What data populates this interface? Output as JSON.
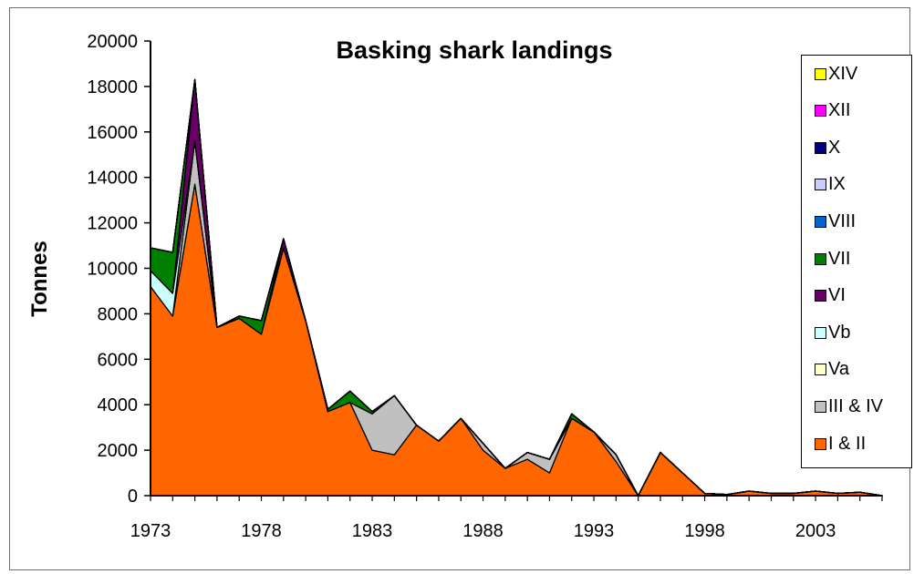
{
  "chart_data": {
    "type": "area",
    "stacked": true,
    "title": "Basking shark landings",
    "xlabel": "",
    "ylabel": "Tonnes",
    "xlim": [
      1973,
      2006
    ],
    "ylim": [
      0,
      20000
    ],
    "y_ticks": [
      0,
      2000,
      4000,
      6000,
      8000,
      10000,
      12000,
      14000,
      16000,
      18000,
      20000
    ],
    "x_tick_labels": [
      "1973",
      "1978",
      "1983",
      "1988",
      "1993",
      "1998",
      "2003"
    ],
    "x_tick_values": [
      1973,
      1978,
      1983,
      1988,
      1993,
      1998,
      2003
    ],
    "grid": false,
    "legend_position": "right",
    "x": [
      1973,
      1974,
      1975,
      1976,
      1977,
      1978,
      1979,
      1980,
      1981,
      1982,
      1983,
      1984,
      1985,
      1986,
      1987,
      1988,
      1989,
      1990,
      1991,
      1992,
      1993,
      1994,
      1995,
      1996,
      1997,
      1998,
      1999,
      2000,
      2001,
      2002,
      2003,
      2004,
      2005,
      2006
    ],
    "series": [
      {
        "name": "I & II",
        "color": "#ff6600",
        "values": [
          9200,
          7900,
          13700,
          7400,
          7800,
          7100,
          10900,
          7700,
          3700,
          4100,
          2000,
          1800,
          3100,
          2400,
          3400,
          2000,
          1200,
          1600,
          1000,
          3400,
          2800,
          1500,
          0,
          1900,
          1000,
          100,
          50,
          200,
          100,
          100,
          200,
          100,
          150,
          0
        ]
      },
      {
        "name": "III & IV",
        "color": "#c0c0c0",
        "values": [
          0,
          0,
          1900,
          0,
          0,
          0,
          0,
          0,
          0,
          0,
          1600,
          2600,
          0,
          0,
          0,
          300,
          0,
          300,
          600,
          0,
          0,
          300,
          0,
          0,
          0,
          0,
          0,
          0,
          0,
          0,
          0,
          0,
          0,
          0
        ]
      },
      {
        "name": "Va",
        "color": "#ffffcc",
        "values": [
          0,
          0,
          0,
          0,
          0,
          0,
          0,
          0,
          0,
          0,
          0,
          0,
          0,
          0,
          0,
          0,
          0,
          0,
          0,
          0,
          0,
          0,
          0,
          0,
          0,
          0,
          0,
          0,
          0,
          0,
          0,
          0,
          0,
          0
        ]
      },
      {
        "name": "Vb",
        "color": "#ccffff",
        "values": [
          700,
          1000,
          0,
          0,
          0,
          0,
          0,
          0,
          0,
          0,
          0,
          0,
          0,
          0,
          0,
          0,
          0,
          0,
          0,
          0,
          0,
          0,
          0,
          0,
          0,
          0,
          0,
          0,
          0,
          0,
          0,
          0,
          0,
          0
        ]
      },
      {
        "name": "VI",
        "color": "#660066",
        "values": [
          0,
          0,
          2700,
          0,
          0,
          0,
          400,
          0,
          0,
          0,
          0,
          0,
          0,
          0,
          0,
          0,
          0,
          0,
          0,
          0,
          0,
          0,
          0,
          0,
          0,
          0,
          0,
          0,
          0,
          0,
          0,
          0,
          0,
          0
        ]
      },
      {
        "name": "VII",
        "color": "#008000",
        "values": [
          1000,
          1800,
          0,
          0,
          100,
          600,
          0,
          0,
          100,
          500,
          100,
          0,
          0,
          0,
          0,
          0,
          0,
          0,
          0,
          200,
          0,
          0,
          0,
          0,
          0,
          0,
          0,
          0,
          0,
          0,
          0,
          0,
          0,
          0
        ]
      },
      {
        "name": "VIII",
        "color": "#0066cc",
        "values": [
          0,
          0,
          0,
          0,
          0,
          0,
          0,
          0,
          0,
          0,
          0,
          0,
          0,
          0,
          0,
          0,
          0,
          0,
          0,
          0,
          0,
          0,
          0,
          0,
          0,
          0,
          0,
          0,
          0,
          0,
          0,
          0,
          0,
          0
        ]
      },
      {
        "name": "IX",
        "color": "#ccccff",
        "values": [
          0,
          0,
          0,
          0,
          0,
          0,
          0,
          0,
          0,
          0,
          0,
          0,
          0,
          0,
          0,
          0,
          0,
          0,
          0,
          0,
          0,
          0,
          0,
          0,
          0,
          0,
          0,
          0,
          0,
          0,
          0,
          0,
          0,
          0
        ]
      },
      {
        "name": "X",
        "color": "#000080",
        "values": [
          0,
          0,
          0,
          0,
          0,
          0,
          0,
          0,
          0,
          0,
          0,
          0,
          0,
          0,
          0,
          0,
          0,
          0,
          0,
          0,
          0,
          0,
          0,
          0,
          0,
          0,
          0,
          0,
          0,
          0,
          0,
          0,
          0,
          0
        ]
      },
      {
        "name": "XII",
        "color": "#ff00ff",
        "values": [
          0,
          0,
          0,
          0,
          0,
          0,
          0,
          0,
          0,
          0,
          0,
          0,
          0,
          0,
          0,
          0,
          0,
          0,
          0,
          0,
          0,
          0,
          0,
          0,
          0,
          0,
          0,
          0,
          0,
          0,
          0,
          0,
          0,
          0
        ]
      },
      {
        "name": "XIV",
        "color": "#ffff00",
        "values": [
          0,
          0,
          0,
          0,
          0,
          0,
          0,
          0,
          0,
          0,
          0,
          0,
          0,
          0,
          0,
          0,
          0,
          0,
          0,
          0,
          0,
          0,
          0,
          0,
          0,
          0,
          0,
          0,
          0,
          0,
          0,
          0,
          0,
          0
        ]
      }
    ]
  }
}
